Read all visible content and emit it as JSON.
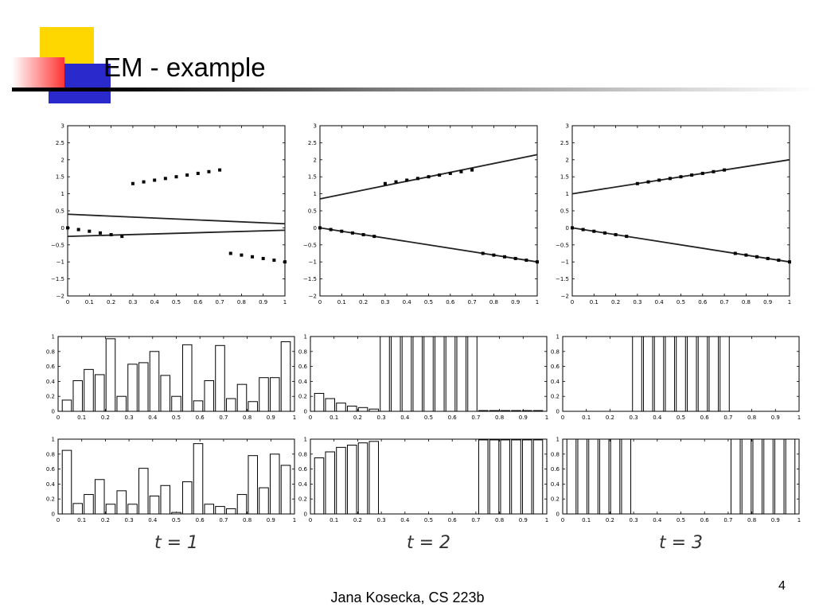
{
  "slide": {
    "title": "EM - example",
    "footer": "Jana Kosecka, CS 223b",
    "page_number": "4",
    "accent_colors": {
      "yellow": "#ffd700",
      "blue": "#2a2acc",
      "red": "#ff3b3b"
    }
  },
  "figure": {
    "column_labels": [
      "t = 1",
      "t = 2",
      "t = 3"
    ],
    "x_ticks": [
      "0",
      "0.1",
      "0.2",
      "0.3",
      "0.4",
      "0.5",
      "0.6",
      "0.7",
      "0.8",
      "0.9",
      "1"
    ],
    "line_y_ticks": [
      "3",
      "2.5",
      "2",
      "1.5",
      "1",
      "0.5",
      "0",
      "−0.5",
      "−1",
      "−1.5",
      "−2"
    ],
    "bar_y_ticks": [
      "1",
      "0.8",
      "0.6",
      "0.4",
      "0.2",
      "0"
    ]
  },
  "chart_data": [
    {
      "type": "scatter",
      "column": "t = 1",
      "xlim": [
        0,
        1
      ],
      "ylim": [
        -2,
        3
      ],
      "points_x": [
        0,
        0.05,
        0.1,
        0.15,
        0.2,
        0.25,
        0.3,
        0.35,
        0.4,
        0.45,
        0.5,
        0.55,
        0.6,
        0.65,
        0.7,
        0.75,
        0.8,
        0.85,
        0.9,
        0.95,
        1
      ],
      "points_y": [
        0,
        -0.05,
        -0.1,
        -0.15,
        -0.2,
        -0.25,
        1.3,
        1.35,
        1.4,
        1.45,
        1.5,
        1.55,
        1.6,
        1.65,
        1.7,
        -0.75,
        -0.8,
        -0.85,
        -0.9,
        -0.95,
        -1
      ],
      "lines": [
        {
          "x": [
            0,
            1
          ],
          "y": [
            0.4,
            0.12
          ]
        },
        {
          "x": [
            0,
            1
          ],
          "y": [
            -0.25,
            -0.07
          ]
        }
      ]
    },
    {
      "type": "scatter",
      "column": "t = 2",
      "xlim": [
        0,
        1
      ],
      "ylim": [
        -2,
        3
      ],
      "points_x": [
        0,
        0.05,
        0.1,
        0.15,
        0.2,
        0.25,
        0.3,
        0.35,
        0.4,
        0.45,
        0.5,
        0.55,
        0.6,
        0.65,
        0.7,
        0.75,
        0.8,
        0.85,
        0.9,
        0.95,
        1
      ],
      "points_y": [
        0,
        -0.05,
        -0.1,
        -0.15,
        -0.2,
        -0.25,
        1.3,
        1.35,
        1.4,
        1.45,
        1.5,
        1.55,
        1.6,
        1.65,
        1.7,
        -0.75,
        -0.8,
        -0.85,
        -0.9,
        -0.95,
        -1
      ],
      "lines": [
        {
          "x": [
            0,
            1
          ],
          "y": [
            0.85,
            2.15
          ]
        },
        {
          "x": [
            0,
            1
          ],
          "y": [
            0,
            -1
          ]
        }
      ]
    },
    {
      "type": "scatter",
      "column": "t = 3",
      "xlim": [
        0,
        1
      ],
      "ylim": [
        -2,
        3
      ],
      "points_x": [
        0,
        0.05,
        0.1,
        0.15,
        0.2,
        0.25,
        0.3,
        0.35,
        0.4,
        0.45,
        0.5,
        0.55,
        0.6,
        0.65,
        0.7,
        0.75,
        0.8,
        0.85,
        0.9,
        0.95,
        1
      ],
      "points_y": [
        0,
        -0.05,
        -0.1,
        -0.15,
        -0.2,
        -0.25,
        1.3,
        1.35,
        1.4,
        1.45,
        1.5,
        1.55,
        1.6,
        1.65,
        1.7,
        -0.75,
        -0.8,
        -0.85,
        -0.9,
        -0.95,
        -1
      ],
      "lines": [
        {
          "x": [
            0,
            1
          ],
          "y": [
            1.0,
            2.0
          ]
        },
        {
          "x": [
            0,
            1
          ],
          "y": [
            0,
            -1
          ]
        }
      ]
    },
    {
      "type": "bar",
      "column": "t = 1",
      "row": "middle",
      "xlim": [
        0,
        1
      ],
      "ylim": [
        0,
        1
      ],
      "x": [
        0,
        0.05,
        0.1,
        0.15,
        0.2,
        0.25,
        0.3,
        0.35,
        0.4,
        0.45,
        0.5,
        0.55,
        0.6,
        0.65,
        0.7,
        0.75,
        0.8,
        0.85,
        0.9,
        0.95,
        1
      ],
      "values": [
        0.15,
        0.41,
        0.56,
        0.49,
        0.97,
        0.2,
        0.63,
        0.65,
        0.8,
        0.48,
        0.2,
        0.89,
        0.14,
        0.41,
        0.88,
        0.17,
        0.36,
        0.13,
        0.45,
        0.45,
        0.93
      ]
    },
    {
      "type": "bar",
      "column": "t = 2",
      "row": "middle",
      "xlim": [
        0,
        1
      ],
      "ylim": [
        0,
        1
      ],
      "x": [
        0,
        0.05,
        0.1,
        0.15,
        0.2,
        0.25,
        0.3,
        0.35,
        0.4,
        0.45,
        0.5,
        0.55,
        0.6,
        0.65,
        0.7,
        0.75,
        0.8,
        0.85,
        0.9,
        0.95,
        1
      ],
      "values": [
        0.24,
        0.17,
        0.11,
        0.07,
        0.05,
        0.03,
        1,
        1,
        1,
        1,
        1,
        1,
        1,
        1,
        1,
        0.01,
        0.01,
        0.01,
        0.01,
        0.01,
        0.01
      ]
    },
    {
      "type": "bar",
      "column": "t = 3",
      "row": "middle",
      "xlim": [
        0,
        1
      ],
      "ylim": [
        0,
        1
      ],
      "x": [
        0,
        0.05,
        0.1,
        0.15,
        0.2,
        0.25,
        0.3,
        0.35,
        0.4,
        0.45,
        0.5,
        0.55,
        0.6,
        0.65,
        0.7,
        0.75,
        0.8,
        0.85,
        0.9,
        0.95,
        1
      ],
      "values": [
        0,
        0,
        0,
        0,
        0,
        0,
        1,
        1,
        1,
        1,
        1,
        1,
        1,
        1,
        1,
        0,
        0,
        0,
        0,
        0,
        0
      ]
    },
    {
      "type": "bar",
      "column": "t = 1",
      "row": "bottom",
      "xlim": [
        0,
        1
      ],
      "ylim": [
        0,
        1
      ],
      "x": [
        0,
        0.05,
        0.1,
        0.15,
        0.2,
        0.25,
        0.3,
        0.35,
        0.4,
        0.45,
        0.5,
        0.55,
        0.6,
        0.65,
        0.7,
        0.75,
        0.8,
        0.85,
        0.9,
        0.95,
        1
      ],
      "values": [
        0.85,
        0.14,
        0.26,
        0.46,
        0.13,
        0.31,
        0.13,
        0.61,
        0.24,
        0.38,
        0.02,
        0.43,
        0.94,
        0.13,
        0.1,
        0.07,
        0.26,
        0.78,
        0.35,
        0.8,
        0.65
      ]
    },
    {
      "type": "bar",
      "column": "t = 2",
      "row": "bottom",
      "xlim": [
        0,
        1
      ],
      "ylim": [
        0,
        1
      ],
      "x": [
        0,
        0.05,
        0.1,
        0.15,
        0.2,
        0.25,
        0.3,
        0.35,
        0.4,
        0.45,
        0.5,
        0.55,
        0.6,
        0.65,
        0.7,
        0.75,
        0.8,
        0.85,
        0.9,
        0.95,
        1
      ],
      "values": [
        0.75,
        0.83,
        0.89,
        0.92,
        0.95,
        0.97,
        0,
        0,
        0,
        0,
        0,
        0,
        0,
        0,
        0,
        0.99,
        0.99,
        0.99,
        0.99,
        0.99,
        0.99
      ]
    },
    {
      "type": "bar",
      "column": "t = 3",
      "row": "bottom",
      "xlim": [
        0,
        1
      ],
      "ylim": [
        0,
        1
      ],
      "x": [
        0,
        0.05,
        0.1,
        0.15,
        0.2,
        0.25,
        0.3,
        0.35,
        0.4,
        0.45,
        0.5,
        0.55,
        0.6,
        0.65,
        0.7,
        0.75,
        0.8,
        0.85,
        0.9,
        0.95,
        1
      ],
      "values": [
        1,
        1,
        1,
        1,
        1,
        1,
        0,
        0,
        0,
        0,
        0,
        0,
        0,
        0,
        0,
        1,
        1,
        1,
        1,
        1,
        1
      ]
    }
  ]
}
